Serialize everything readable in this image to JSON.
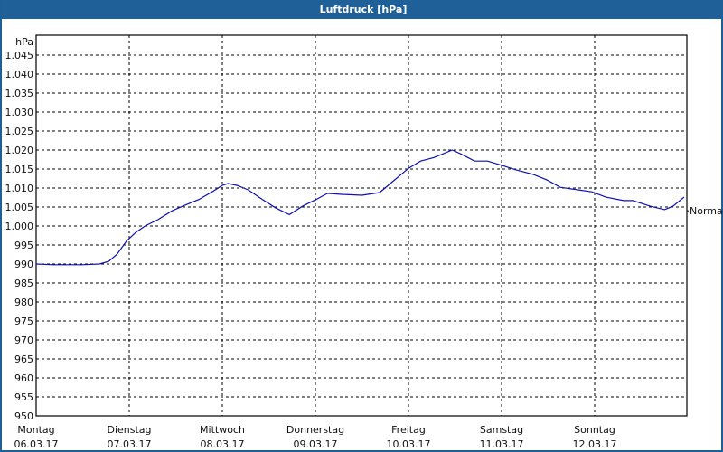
{
  "window": {
    "title": "Luftdruck [hPa]"
  },
  "chart_data": {
    "type": "line",
    "title": "Luftdruck [hPa]",
    "xlabel": "",
    "ylabel": "hPa",
    "ylim": [
      950,
      1049
    ],
    "grid": true,
    "yticks": [
      "950",
      "955",
      "960",
      "965",
      "970",
      "975",
      "980",
      "985",
      "990",
      "995",
      "1.000",
      "1.005",
      "1.010",
      "1.015",
      "1.020",
      "1.025",
      "1.030",
      "1.035",
      "1.040",
      "1.045"
    ],
    "xticks": [
      {
        "day": "Montag",
        "date": "06.03.17"
      },
      {
        "day": "Dienstag",
        "date": "07.03.17"
      },
      {
        "day": "Mittwoch",
        "date": "08.03.17"
      },
      {
        "day": "Donnerstag",
        "date": "09.03.17"
      },
      {
        "day": "Freitag",
        "date": "10.03.17"
      },
      {
        "day": "Samstag",
        "date": "11.03.17"
      },
      {
        "day": "Sonntag",
        "date": "12.03.17"
      }
    ],
    "reference_line": {
      "label": "Normal",
      "value": 1004
    },
    "series": [
      {
        "name": "Luftdruck",
        "color": "#1010b0",
        "x_days": [
          0.0,
          0.19,
          0.49,
          0.68,
          0.78,
          0.87,
          0.97,
          1.07,
          1.17,
          1.31,
          1.46,
          1.6,
          1.75,
          1.89,
          2.0,
          2.06,
          2.16,
          2.28,
          2.43,
          2.57,
          2.72,
          2.86,
          3.01,
          3.13,
          3.3,
          3.5,
          3.69,
          3.84,
          4.0,
          4.13,
          4.27,
          4.47,
          4.56,
          4.71,
          4.85,
          5.0,
          5.15,
          5.34,
          5.49,
          5.63,
          5.83,
          5.97,
          6.12,
          6.31,
          6.41,
          6.6,
          6.75,
          6.84,
          6.96
        ],
        "values": [
          990.0,
          989.8,
          989.8,
          990.0,
          990.7,
          992.6,
          996.0,
          998.3,
          1000.0,
          1001.7,
          1004.0,
          1005.5,
          1007.0,
          1009.0,
          1010.7,
          1011.2,
          1010.7,
          1009.5,
          1007.0,
          1004.8,
          1003.0,
          1005.2,
          1007.0,
          1008.6,
          1008.3,
          1008.1,
          1008.8,
          1011.9,
          1015.2,
          1017.1,
          1018.0,
          1020.0,
          1019.0,
          1017.1,
          1017.1,
          1016.0,
          1014.8,
          1013.6,
          1012.1,
          1010.2,
          1009.5,
          1009.0,
          1007.6,
          1006.7,
          1006.7,
          1005.2,
          1004.3,
          1005.2,
          1007.6
        ]
      }
    ]
  }
}
